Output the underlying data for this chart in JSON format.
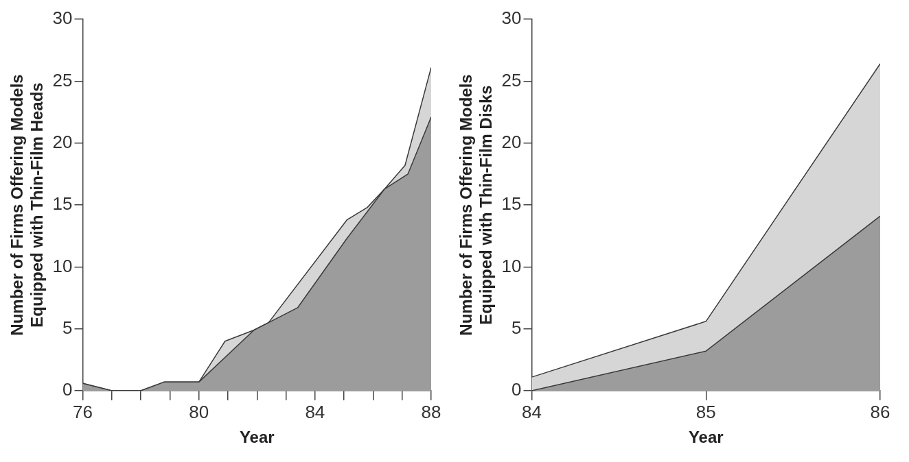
{
  "chart_data": [
    {
      "type": "area",
      "xlabel": "Year",
      "ylabel": "Number of Firms Offering Models\nEquipped with Thin-Film Heads",
      "xlim": [
        76,
        88
      ],
      "xticks": [
        76,
        {
          "value": 77,
          "label": null
        },
        {
          "value": 78,
          "label": null
        },
        {
          "value": 79,
          "label": null
        },
        80,
        {
          "value": 81,
          "label": null
        },
        {
          "value": 82,
          "label": null
        },
        {
          "value": 83,
          "label": null
        },
        84,
        {
          "value": 85,
          "label": null
        },
        {
          "value": 86,
          "label": null
        },
        {
          "value": 87,
          "label": null
        },
        88
      ],
      "ylim": [
        0,
        30
      ],
      "yticks": [
        0,
        5,
        10,
        15,
        20,
        25,
        30
      ],
      "grid": false,
      "legend": false,
      "series": [
        {
          "color": "#d6d6d6",
          "x": [
            76,
            77,
            78,
            78.8,
            80,
            80.9,
            81.9,
            82.4,
            85.1,
            85.8,
            86.4,
            87.1,
            88
          ],
          "values": [
            0.6,
            0,
            0,
            0.7,
            0.7,
            4.0,
            4.9,
            5.5,
            13.8,
            14.8,
            16.3,
            18.2,
            26.1
          ]
        },
        {
          "color": "#9c9c9c",
          "x": [
            76,
            77,
            78,
            78.8,
            80,
            81.9,
            82.4,
            83.4,
            85.1,
            86.4,
            87.2,
            88
          ],
          "values": [
            0.6,
            0,
            0,
            0.7,
            0.7,
            4.9,
            5.5,
            6.7,
            12.3,
            16.3,
            17.5,
            22.1
          ]
        }
      ]
    },
    {
      "type": "area",
      "xlabel": "Year",
      "ylabel": "Number of Firms Offering Models\nEquipped with Thin-Film Disks",
      "xlim": [
        84,
        86
      ],
      "xticks": [
        84,
        85,
        86
      ],
      "ylim": [
        0,
        30
      ],
      "yticks": [
        0,
        5,
        10,
        15,
        20,
        25,
        30
      ],
      "grid": false,
      "legend": false,
      "series": [
        {
          "color": "#d6d6d6",
          "x": [
            84,
            85,
            86
          ],
          "values": [
            1.1,
            5.6,
            26.4
          ]
        },
        {
          "color": "#9c9c9c",
          "x": [
            84,
            85,
            86
          ],
          "values": [
            0,
            3.2,
            14.1
          ]
        }
      ]
    }
  ]
}
